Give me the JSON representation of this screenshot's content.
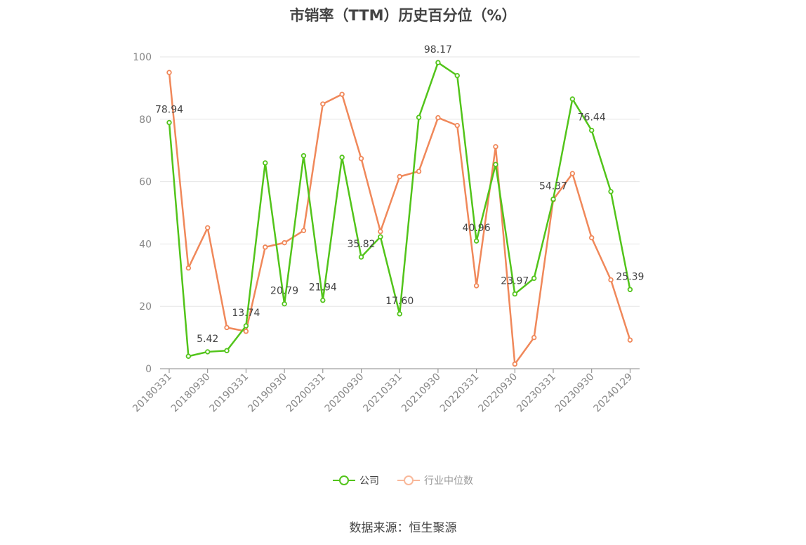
{
  "title": "市销率（TTM）历史百分位（%）",
  "source": "数据来源：恒生聚源",
  "legend": [
    "公司",
    "行业中位数"
  ],
  "colors": {
    "company": "#52c41a",
    "industry": "#f0885a",
    "industry_legend": "#f9b89a",
    "grid": "#e6e6e6",
    "axis": "#888888"
  },
  "chart_data": {
    "type": "line",
    "title": "市销率（TTM）历史百分位（%）",
    "ylim": [
      0,
      100
    ],
    "yticks": [
      0,
      20,
      40,
      60,
      80,
      100
    ],
    "xtick_labels": [
      "20180331",
      "20180930",
      "20190331",
      "20190930",
      "20200331",
      "20200930",
      "20210331",
      "20210930",
      "20220331",
      "20220930",
      "20230331",
      "20230930",
      "20240129"
    ],
    "grid": true,
    "legend_position": "bottom-center",
    "x": [
      "20180331",
      "20180630",
      "20180930",
      "20181231",
      "20190331",
      "20190630",
      "20190930",
      "20191231",
      "20200331",
      "20200630",
      "20200930",
      "20201231",
      "20210331",
      "20210630",
      "20210930",
      "20211231",
      "20220331",
      "20220630",
      "20220930",
      "20221231",
      "20230331",
      "20230630",
      "20230930",
      "20231231",
      "20240129"
    ],
    "series": [
      {
        "name": "公司",
        "values": [
          78.94,
          4.0,
          5.42,
          5.8,
          13.74,
          66.0,
          20.79,
          68.3,
          21.94,
          67.8,
          35.82,
          42.3,
          17.6,
          80.6,
          98.17,
          94.0,
          40.96,
          65.5,
          23.97,
          29.0,
          54.37,
          86.5,
          76.44,
          56.8,
          25.39
        ],
        "labels": [
          "78.94",
          "",
          "5.42",
          "",
          "13.74",
          "",
          "20.79",
          "",
          "21.94",
          "",
          "35.82",
          "",
          "17.60",
          "",
          "98.17",
          "",
          "40.96",
          "",
          "23.97",
          "",
          "54.37",
          "",
          "76.44",
          "",
          "25.39"
        ]
      },
      {
        "name": "行业中位数",
        "values": [
          95.0,
          32.3,
          45.2,
          13.2,
          12.0,
          39.0,
          40.4,
          44.3,
          84.9,
          88.0,
          67.4,
          44.0,
          61.6,
          63.3,
          80.5,
          78.0,
          26.6,
          71.2,
          1.5,
          10.0,
          54.2,
          62.6,
          42.0,
          28.5,
          9.2
        ]
      }
    ]
  }
}
